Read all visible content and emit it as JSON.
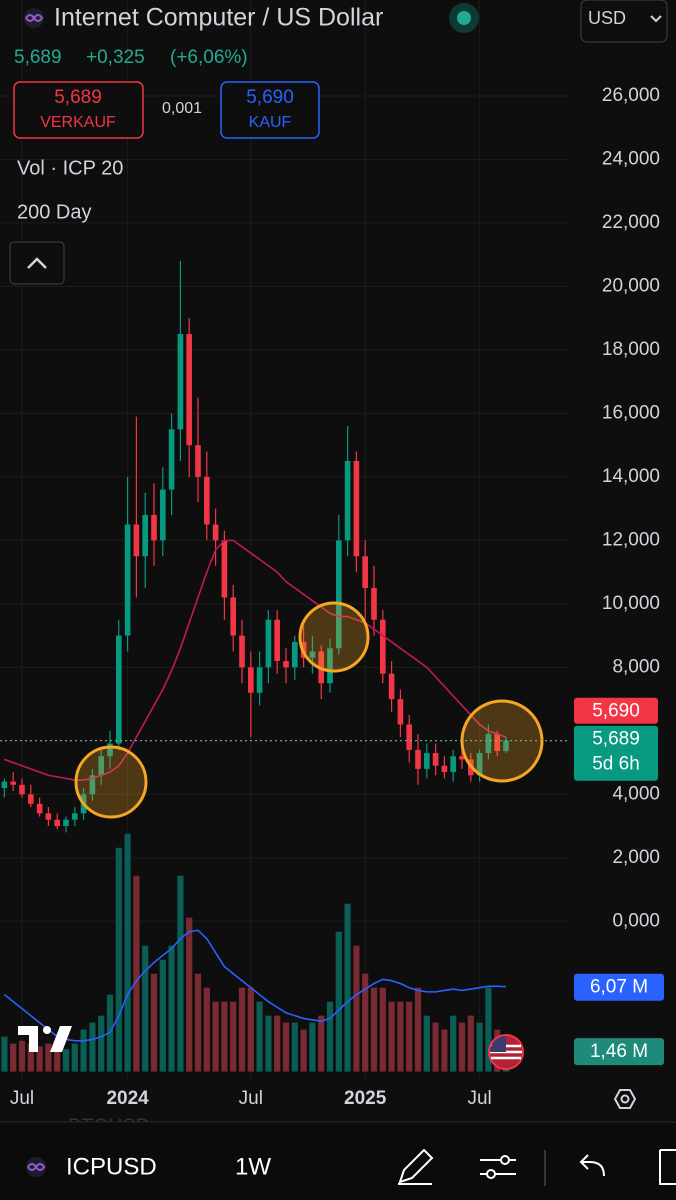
{
  "header": {
    "title": "Internet Computer / US Dollar",
    "currency": "USD",
    "price": "5,689",
    "change": "+0,325",
    "change_pct": "(+6,06%)",
    "sell_price": "5,689",
    "sell_label": "VERKAUF",
    "spread": "0,001",
    "buy_price": "5,690",
    "buy_label": "KAUF",
    "indicator_vol": "Vol · ICP 20",
    "indicator_ma": "200 Day"
  },
  "chart_data": {
    "type": "candlestick",
    "categories": [
      null,
      null,
      "Jul",
      null,
      null,
      null,
      null,
      null,
      null,
      null,
      null,
      null,
      null,
      null,
      "2024",
      null,
      null,
      null,
      null,
      null,
      null,
      null,
      null,
      null,
      null,
      null,
      null,
      null,
      "Jul",
      null,
      null,
      null,
      null,
      null,
      null,
      null,
      null,
      null,
      null,
      null,
      null,
      "2025",
      null,
      null,
      null,
      null,
      null,
      null,
      null,
      null,
      null,
      null,
      null,
      null,
      "Jul",
      null,
      null,
      null
    ],
    "open": [
      4.2,
      4.4,
      4.3,
      4.0,
      3.7,
      3.4,
      3.2,
      3.0,
      3.2,
      3.4,
      4.0,
      4.6,
      5.2,
      5.6,
      9.0,
      12.5,
      11.5,
      12.8,
      12.0,
      13.6,
      15.5,
      18.5,
      15.0,
      14.0,
      12.5,
      12.0,
      10.2,
      9.0,
      8.0,
      7.2,
      8.0,
      9.5,
      8.2,
      8.0,
      8.8,
      8.3,
      8.5,
      7.5,
      8.6,
      12.0,
      14.5,
      11.5,
      10.5,
      9.5,
      7.8,
      7.0,
      6.2,
      5.4,
      4.8,
      5.3,
      4.9,
      4.7,
      5.2,
      5.1,
      4.6,
      5.3,
      5.9,
      5.364
    ],
    "high": [
      4.5,
      4.7,
      4.5,
      4.3,
      3.9,
      3.6,
      3.4,
      3.3,
      3.6,
      4.2,
      4.8,
      5.4,
      6.0,
      9.5,
      14.0,
      15.9,
      13.5,
      13.8,
      14.3,
      16.0,
      20.8,
      19.0,
      16.5,
      14.8,
      13.0,
      12.3,
      10.6,
      9.5,
      8.5,
      8.5,
      9.8,
      9.8,
      8.6,
      9.0,
      9.3,
      9.0,
      8.7,
      8.9,
      12.8,
      15.6,
      14.8,
      12.0,
      11.2,
      9.8,
      8.2,
      7.3,
      6.5,
      5.9,
      5.6,
      5.6,
      5.2,
      5.4,
      5.6,
      5.3,
      5.4,
      6.2,
      6.0,
      5.8
    ],
    "low": [
      3.9,
      4.1,
      3.9,
      3.6,
      3.3,
      3.0,
      2.9,
      2.8,
      3.0,
      3.2,
      3.8,
      4.3,
      4.8,
      5.4,
      8.5,
      10.2,
      10.5,
      11.2,
      11.5,
      12.8,
      14.5,
      14.0,
      13.2,
      12.0,
      11.2,
      9.5,
      8.5,
      7.5,
      5.8,
      6.8,
      7.5,
      7.8,
      7.5,
      7.6,
      8.0,
      7.8,
      7.0,
      7.2,
      8.4,
      11.5,
      11.0,
      9.5,
      9.0,
      7.5,
      6.6,
      5.8,
      5.0,
      4.3,
      4.5,
      4.6,
      4.5,
      4.4,
      4.8,
      4.4,
      4.4,
      5.1,
      5.2,
      5.3
    ],
    "close": [
      4.4,
      4.3,
      4.0,
      3.7,
      3.4,
      3.2,
      3.0,
      3.2,
      3.4,
      4.0,
      4.6,
      5.2,
      5.6,
      9.0,
      12.5,
      11.5,
      12.8,
      12.0,
      13.6,
      15.5,
      18.5,
      15.0,
      14.0,
      12.5,
      12.0,
      10.2,
      9.0,
      8.0,
      7.2,
      8.0,
      9.5,
      8.2,
      8.0,
      8.8,
      8.3,
      8.5,
      7.5,
      8.6,
      12.0,
      14.5,
      11.5,
      10.5,
      9.5,
      7.8,
      7.0,
      6.2,
      5.4,
      4.8,
      5.3,
      4.9,
      4.7,
      5.2,
      5.1,
      4.6,
      5.3,
      5.9,
      5.364,
      5.689
    ],
    "up_color": "#089981",
    "down_color": "#f23645",
    "ylim": [
      -5,
      27.7
    ],
    "yticks": [
      {
        "value": 26,
        "label": "26,000"
      },
      {
        "value": 24,
        "label": "24,000"
      },
      {
        "value": 22,
        "label": "22,000"
      },
      {
        "value": 20,
        "label": "20,000"
      },
      {
        "value": 18,
        "label": "18,000"
      },
      {
        "value": 16,
        "label": "16,000"
      },
      {
        "value": 14,
        "label": "14,000"
      },
      {
        "value": 12,
        "label": "12,000"
      },
      {
        "value": 10,
        "label": "10,000"
      },
      {
        "value": 8,
        "label": "8,000"
      },
      {
        "value": 4,
        "label": "4,000"
      },
      {
        "value": 2,
        "label": "2,000"
      },
      {
        "value": 0,
        "label": "0,000"
      }
    ],
    "grid": true,
    "ma200": {
      "color": "#c2185b",
      "values": [
        5.1,
        5.0,
        4.9,
        4.8,
        4.7,
        4.6,
        4.55,
        4.5,
        4.45,
        4.45,
        4.5,
        4.6,
        4.7,
        4.9,
        5.3,
        5.8,
        6.3,
        6.8,
        7.3,
        7.9,
        8.6,
        9.4,
        10.2,
        11.0,
        11.7,
        12.0,
        12.0,
        11.8,
        11.6,
        11.4,
        11.2,
        11.0,
        10.7,
        10.5,
        10.3,
        10.1,
        9.9,
        9.7,
        9.6,
        9.6,
        9.5,
        9.4,
        9.2,
        9.0,
        8.8,
        8.6,
        8.4,
        8.2,
        8.0,
        7.7,
        7.4,
        7.1,
        6.8,
        6.5,
        6.2,
        6.0,
        5.9,
        5.8
      ]
    },
    "volume": {
      "up_color": "#0b5e55",
      "down_color": "#7a2a32",
      "values": [
        2.5,
        2.0,
        2.2,
        2.0,
        1.8,
        2.0,
        1.8,
        1.6,
        2.0,
        3.0,
        3.5,
        4.0,
        5.5,
        16,
        17,
        14,
        9,
        7,
        8,
        9,
        14,
        11,
        7,
        6,
        5,
        5,
        5,
        6,
        6,
        5,
        4,
        4,
        3.5,
        3.5,
        3,
        3.5,
        4,
        5,
        10,
        12,
        9,
        7,
        6,
        6,
        5,
        5,
        5,
        6,
        4,
        3.5,
        3,
        4,
        3.5,
        4,
        3.5,
        6,
        3,
        1.46
      ]
    },
    "volume_ma": {
      "color": "#2962ff",
      "values": [
        5.5,
        5.0,
        4.5,
        4.0,
        3.5,
        3.0,
        2.5,
        2.3,
        2.2,
        2.2,
        2.3,
        2.5,
        2.8,
        4.0,
        5.5,
        6.5,
        7.2,
        7.8,
        8.3,
        8.8,
        9.5,
        10.0,
        10.1,
        9.5,
        8.5,
        7.5,
        7.0,
        6.5,
        6.0,
        5.5,
        5.0,
        4.6,
        4.2,
        4.0,
        3.8,
        3.7,
        3.6,
        3.8,
        4.4,
        5.0,
        5.5,
        5.9,
        6.3,
        6.6,
        6.5,
        6.3,
        6.0,
        5.8,
        5.7,
        5.7,
        5.8,
        5.9,
        5.8,
        5.9,
        6.0,
        6.1,
        6.1,
        6.07
      ]
    },
    "y2lim": [
      -0.6,
      73.6
    ],
    "price_markers": [
      {
        "value": 5.69,
        "label": "5,690",
        "color": "#f23645"
      },
      {
        "value": 5.689,
        "label": "5,689",
        "sub": "5d 6h",
        "color": "#089981"
      }
    ],
    "volume_markers": [
      {
        "value": 6.07,
        "label": "6,07 M",
        "color": "#2962ff"
      },
      {
        "value": 1.46,
        "label": "1,46 M",
        "color": "#1e8a7a"
      }
    ]
  },
  "toolbar": {
    "ghost": "BTCUSD",
    "symbol": "ICPUSD",
    "interval": "1W"
  }
}
